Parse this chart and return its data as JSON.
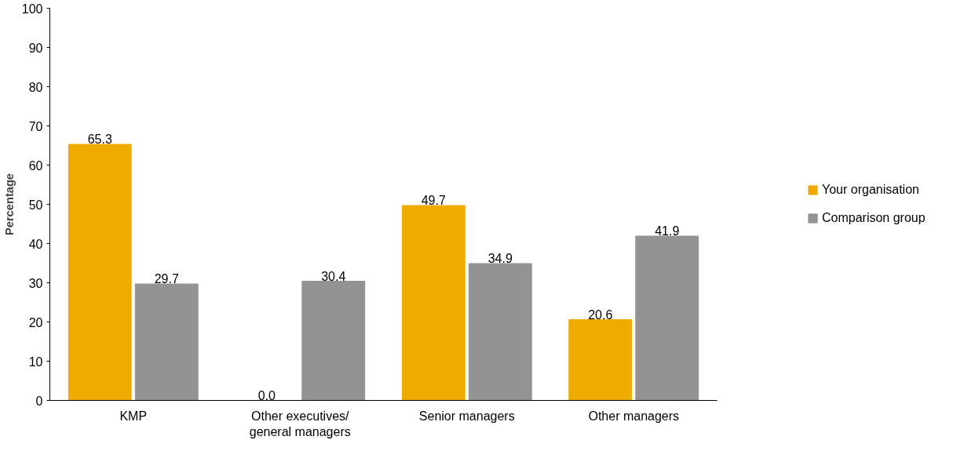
{
  "chart_data": {
    "type": "bar",
    "ylabel": "Percentage",
    "categories": [
      "KMP",
      "Other executives/\ngeneral managers",
      "Senior managers",
      "Other managers"
    ],
    "series": [
      {
        "name": "Your organisation",
        "color": "#f0ab00",
        "values": [
          65.3,
          0.0,
          49.7,
          20.6
        ]
      },
      {
        "name": "Comparison group",
        "color": "#939393",
        "values": [
          29.7,
          30.4,
          34.9,
          41.9
        ]
      }
    ],
    "ylim": [
      0,
      100
    ],
    "yticks": [
      0,
      10,
      20,
      30,
      40,
      50,
      60,
      70,
      80,
      90,
      100
    ],
    "value_labels": [
      [
        "65.3",
        "0.0",
        "49.7",
        "20.6"
      ],
      [
        "29.7",
        "30.4",
        "34.9",
        "41.9"
      ]
    ],
    "grid": false,
    "legend": "right"
  }
}
